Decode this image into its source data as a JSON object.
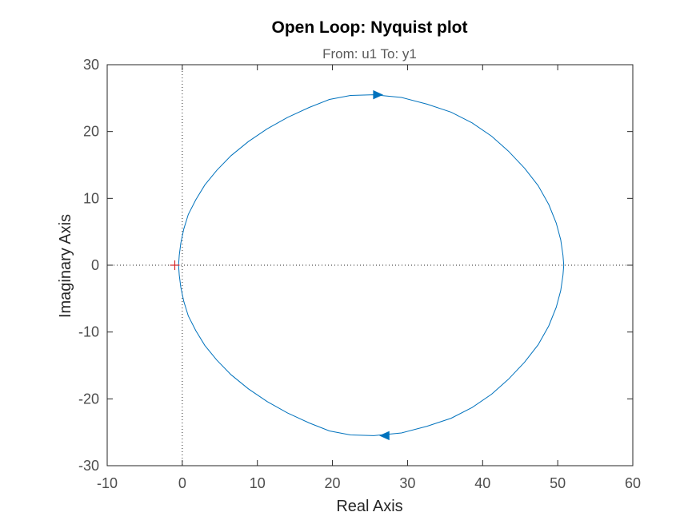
{
  "chart_data": {
    "type": "line",
    "title": "Open Loop: Nyquist plot",
    "subtitle": "From: u1  To: y1",
    "xlabel": "Real Axis",
    "ylabel": "Imaginary Axis",
    "xlim": [
      -10,
      60
    ],
    "ylim": [
      -30,
      30
    ],
    "xticks": [
      "-10",
      "0",
      "10",
      "20",
      "30",
      "40",
      "50",
      "60"
    ],
    "yticks": [
      "-30",
      "-20",
      "-10",
      "0",
      "10",
      "20",
      "30"
    ],
    "grid": false,
    "legend": "none",
    "series": [
      {
        "color": "#0072bd",
        "x": [
          -0.5,
          -0.4,
          -0.2,
          0.2,
          0.8,
          1.8,
          3.0,
          4.6,
          6.5,
          8.8,
          11.3,
          14.0,
          16.9,
          19.6,
          22.4,
          25.5,
          29.2,
          32.6,
          35.8,
          38.6,
          41.2,
          43.5,
          45.6,
          47.4,
          48.8,
          49.8,
          50.4,
          50.7,
          50.8,
          50.7,
          50.4,
          49.8,
          48.8,
          47.4,
          45.6,
          43.5,
          41.2,
          38.6,
          35.8,
          32.6,
          29.2,
          25.5,
          22.4,
          19.6,
          16.9,
          14.0,
          11.3,
          8.8,
          6.5,
          4.6,
          3.0,
          1.8,
          0.8,
          0.2,
          -0.2,
          -0.4,
          -0.5
        ],
        "y": [
          0,
          1.5,
          3.3,
          5.4,
          7.6,
          9.8,
          12.0,
          14.2,
          16.4,
          18.5,
          20.4,
          22.1,
          23.6,
          24.8,
          25.4,
          25.5,
          25.1,
          24.1,
          22.9,
          21.3,
          19.3,
          17.0,
          14.5,
          11.9,
          9.1,
          6.3,
          3.8,
          1.5,
          0,
          -1.5,
          -3.8,
          -6.3,
          -9.1,
          -11.9,
          -14.5,
          -17.0,
          -19.3,
          -21.3,
          -22.9,
          -24.1,
          -25.1,
          -25.5,
          -25.4,
          -24.8,
          -23.6,
          -22.1,
          -20.4,
          -18.5,
          -16.4,
          -14.2,
          -12.0,
          -9.8,
          -7.6,
          -5.4,
          -3.3,
          -1.5,
          0
        ]
      }
    ],
    "direction_arrows": [
      {
        "x": 26.0,
        "y": 25.5,
        "direction": "right"
      },
      {
        "x": 27.0,
        "y": -25.5,
        "direction": "left"
      }
    ],
    "critical_point": {
      "x": -1,
      "y": 0,
      "marker": "+",
      "color": "#d62728"
    },
    "reference_lines": [
      {
        "orientation": "vertical",
        "value": 0,
        "style": "dotted"
      },
      {
        "orientation": "horizontal",
        "value": 0,
        "style": "dotted"
      }
    ]
  }
}
